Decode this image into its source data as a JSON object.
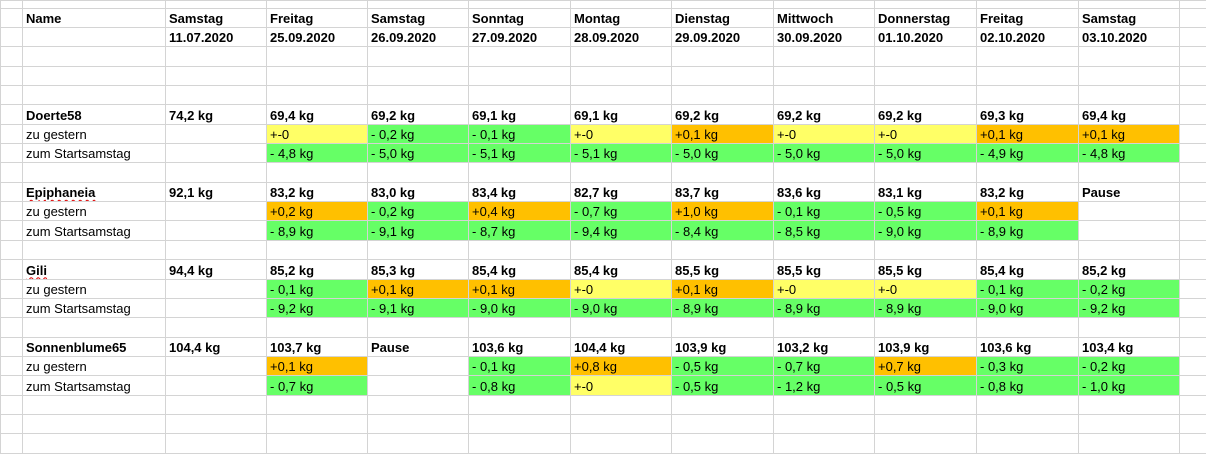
{
  "colors": {
    "green": "#66ff66",
    "yellow": "#ffff66",
    "orange": "#ffc000"
  },
  "header": {
    "name_label": "Name",
    "days": [
      "Samstag",
      "Freitag",
      "Samstag",
      "Sonntag",
      "Montag",
      "Dienstag",
      "Mittwoch",
      "Donnerstag",
      "Freitag",
      "Samstag"
    ],
    "dates": [
      "11.07.2020",
      "25.09.2020",
      "26.09.2020",
      "27.09.2020",
      "28.09.2020",
      "29.09.2020",
      "30.09.2020",
      "01.10.2020",
      "02.10.2020",
      "03.10.2020"
    ]
  },
  "row_labels": {
    "delta_yesterday": "zu gestern",
    "delta_start": "zum Startsamstag"
  },
  "people": [
    {
      "name": "Doerte58",
      "weights": [
        "74,2 kg",
        "69,4 kg",
        "69,2 kg",
        "69,1 kg",
        "69,1 kg",
        "69,2 kg",
        "69,2 kg",
        "69,2 kg",
        "69,3 kg",
        "69,4 kg"
      ],
      "yesterday": [
        null,
        "+-0",
        "- 0,2 kg",
        "- 0,1 kg",
        "+-0",
        "+0,1 kg",
        "+-0",
        "+-0",
        "+0,1 kg",
        "+0,1 kg"
      ],
      "yesterday_colors": [
        null,
        "yellow",
        "green",
        "green",
        "yellow",
        "orange",
        "yellow",
        "yellow",
        "orange",
        "orange"
      ],
      "start": [
        null,
        "- 4,8 kg",
        "- 5,0 kg",
        "- 5,1 kg",
        "- 5,1 kg",
        "- 5,0 kg",
        "- 5,0 kg",
        "- 5,0 kg",
        "- 4,9 kg",
        "- 4,8 kg"
      ],
      "start_colors": [
        null,
        "green",
        "green",
        "green",
        "green",
        "green",
        "green",
        "green",
        "green",
        "green"
      ]
    },
    {
      "name": "Epiphaneia",
      "weights": [
        "92,1 kg",
        "83,2 kg",
        "83,0 kg",
        "83,4 kg",
        "82,7 kg",
        "83,7 kg",
        "83,6 kg",
        "83,1 kg",
        "83,2 kg",
        "Pause"
      ],
      "yesterday": [
        null,
        "+0,2 kg",
        "- 0,2 kg",
        "+0,4 kg",
        "- 0,7 kg",
        "+1,0 kg",
        "- 0,1 kg",
        "- 0,5 kg",
        "+0,1 kg",
        null
      ],
      "yesterday_colors": [
        null,
        "orange",
        "green",
        "orange",
        "green",
        "orange",
        "green",
        "green",
        "orange",
        null
      ],
      "start": [
        null,
        "- 8,9 kg",
        "- 9,1 kg",
        "- 8,7 kg",
        "- 9,4 kg",
        "- 8,4 kg",
        "- 8,5 kg",
        "- 9,0 kg",
        "- 8,9 kg",
        null
      ],
      "start_colors": [
        null,
        "green",
        "green",
        "green",
        "green",
        "green",
        "green",
        "green",
        "green",
        null
      ]
    },
    {
      "name": "Gili",
      "weights": [
        "94,4 kg",
        "85,2 kg",
        "85,3 kg",
        "85,4 kg",
        "85,4 kg",
        "85,5 kg",
        "85,5 kg",
        "85,5 kg",
        "85,4 kg",
        "85,2 kg"
      ],
      "yesterday": [
        null,
        "- 0,1 kg",
        "+0,1 kg",
        "+0,1 kg",
        "+-0",
        "+0,1 kg",
        "+-0",
        "+-0",
        "- 0,1 kg",
        "- 0,2 kg"
      ],
      "yesterday_colors": [
        null,
        "green",
        "orange",
        "orange",
        "yellow",
        "orange",
        "yellow",
        "yellow",
        "green",
        "green"
      ],
      "start": [
        null,
        "- 9,2 kg",
        "- 9,1 kg",
        "- 9,0 kg",
        "- 9,0 kg",
        "- 8,9 kg",
        "- 8,9 kg",
        "- 8,9 kg",
        "- 9,0 kg",
        "- 9,2 kg"
      ],
      "start_colors": [
        null,
        "green",
        "green",
        "green",
        "green",
        "green",
        "green",
        "green",
        "green",
        "green"
      ]
    },
    {
      "name": "Sonnenblume65",
      "weights": [
        "104,4 kg",
        "103,7 kg",
        "Pause",
        "103,6 kg",
        "104,4 kg",
        "103,9 kg",
        "103,2 kg",
        "103,9 kg",
        "103,6 kg",
        "103,4 kg"
      ],
      "yesterday": [
        null,
        "+0,1 kg",
        null,
        "- 0,1 kg",
        "+0,8 kg",
        "- 0,5 kg",
        "- 0,7 kg",
        "+0,7 kg",
        "- 0,3 kg",
        "- 0,2 kg"
      ],
      "yesterday_colors": [
        null,
        "orange",
        null,
        "green",
        "orange",
        "green",
        "green",
        "orange",
        "green",
        "green"
      ],
      "start": [
        null,
        "- 0,7 kg",
        null,
        "- 0,8 kg",
        "+-0",
        "- 0,5 kg",
        "- 1,2 kg",
        "- 0,5 kg",
        "- 0,8 kg",
        "- 1,0 kg"
      ],
      "start_colors": [
        null,
        "green",
        null,
        "green",
        "yellow",
        "green",
        "green",
        "green",
        "green",
        "green"
      ]
    }
  ]
}
